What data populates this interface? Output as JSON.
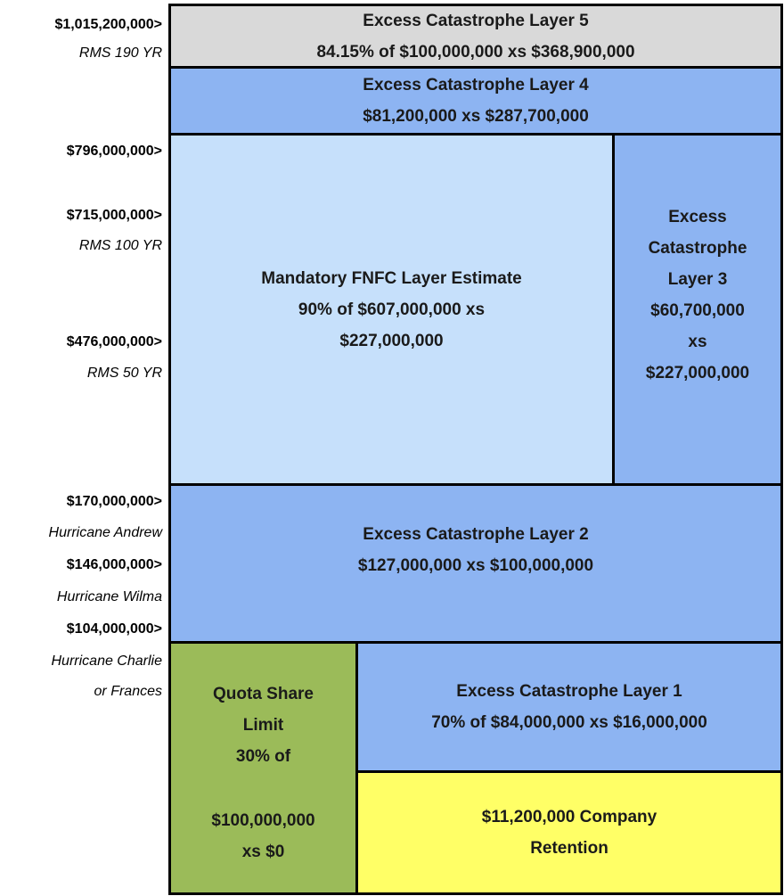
{
  "scale_labels": [
    {
      "text": "$1,015,200,000>",
      "italic": false
    },
    {
      "text": "RMS 190 YR",
      "italic": true
    },
    {
      "text": "$796,000,000>",
      "italic": false
    },
    {
      "text": "$715,000,000>",
      "italic": false
    },
    {
      "text": "RMS 100 YR",
      "italic": true
    },
    {
      "text": "$476,000,000>",
      "italic": false
    },
    {
      "text": "RMS 50 YR",
      "italic": true
    },
    {
      "text": "$170,000,000>",
      "italic": false
    },
    {
      "text": "Hurricane Andrew",
      "italic": true
    },
    {
      "text": "$146,000,000>",
      "italic": false
    },
    {
      "text": "Hurricane Wilma",
      "italic": true
    },
    {
      "text": "$104,000,000>",
      "italic": false
    },
    {
      "text": "Hurricane Charlie",
      "italic": true
    },
    {
      "text": "or Frances",
      "italic": true
    }
  ],
  "layers": {
    "layer5": {
      "lines": [
        "Excess Catastrophe Layer 5",
        "84.15% of $100,000,000 xs $368,900,000"
      ],
      "color": "#d9d9d9"
    },
    "layer4": {
      "lines": [
        "Excess Catastrophe Layer 4",
        "$81,200,000 xs $287,700,000"
      ],
      "color": "#8db4f2"
    },
    "fnfc": {
      "lines": [
        "Mandatory FNFC Layer Estimate",
        "90% of $607,000,000 xs",
        "$227,000,000"
      ],
      "color": "#c6e0fb"
    },
    "layer3": {
      "lines": [
        "Excess",
        "Catastrophe",
        "Layer 3",
        "$60,700,000",
        "xs",
        "$227,000,000"
      ],
      "color": "#8db4f2"
    },
    "layer2": {
      "lines": [
        "Excess Catastrophe Layer 2",
        "$127,000,000 xs $100,000,000"
      ],
      "color": "#8db4f2"
    },
    "quota": {
      "lines": [
        "Quota Share",
        "Limit",
        "30% of",
        "$100,000,000",
        "xs $0"
      ],
      "color": "#9bbb59"
    },
    "layer1": {
      "lines": [
        "Excess Catastrophe Layer 1",
        "70% of $84,000,000 xs $16,000,000"
      ],
      "color": "#8db4f2"
    },
    "retention": {
      "lines": [
        "$11,200,000 Company",
        "Retention"
      ],
      "color": "#ffff66"
    }
  }
}
